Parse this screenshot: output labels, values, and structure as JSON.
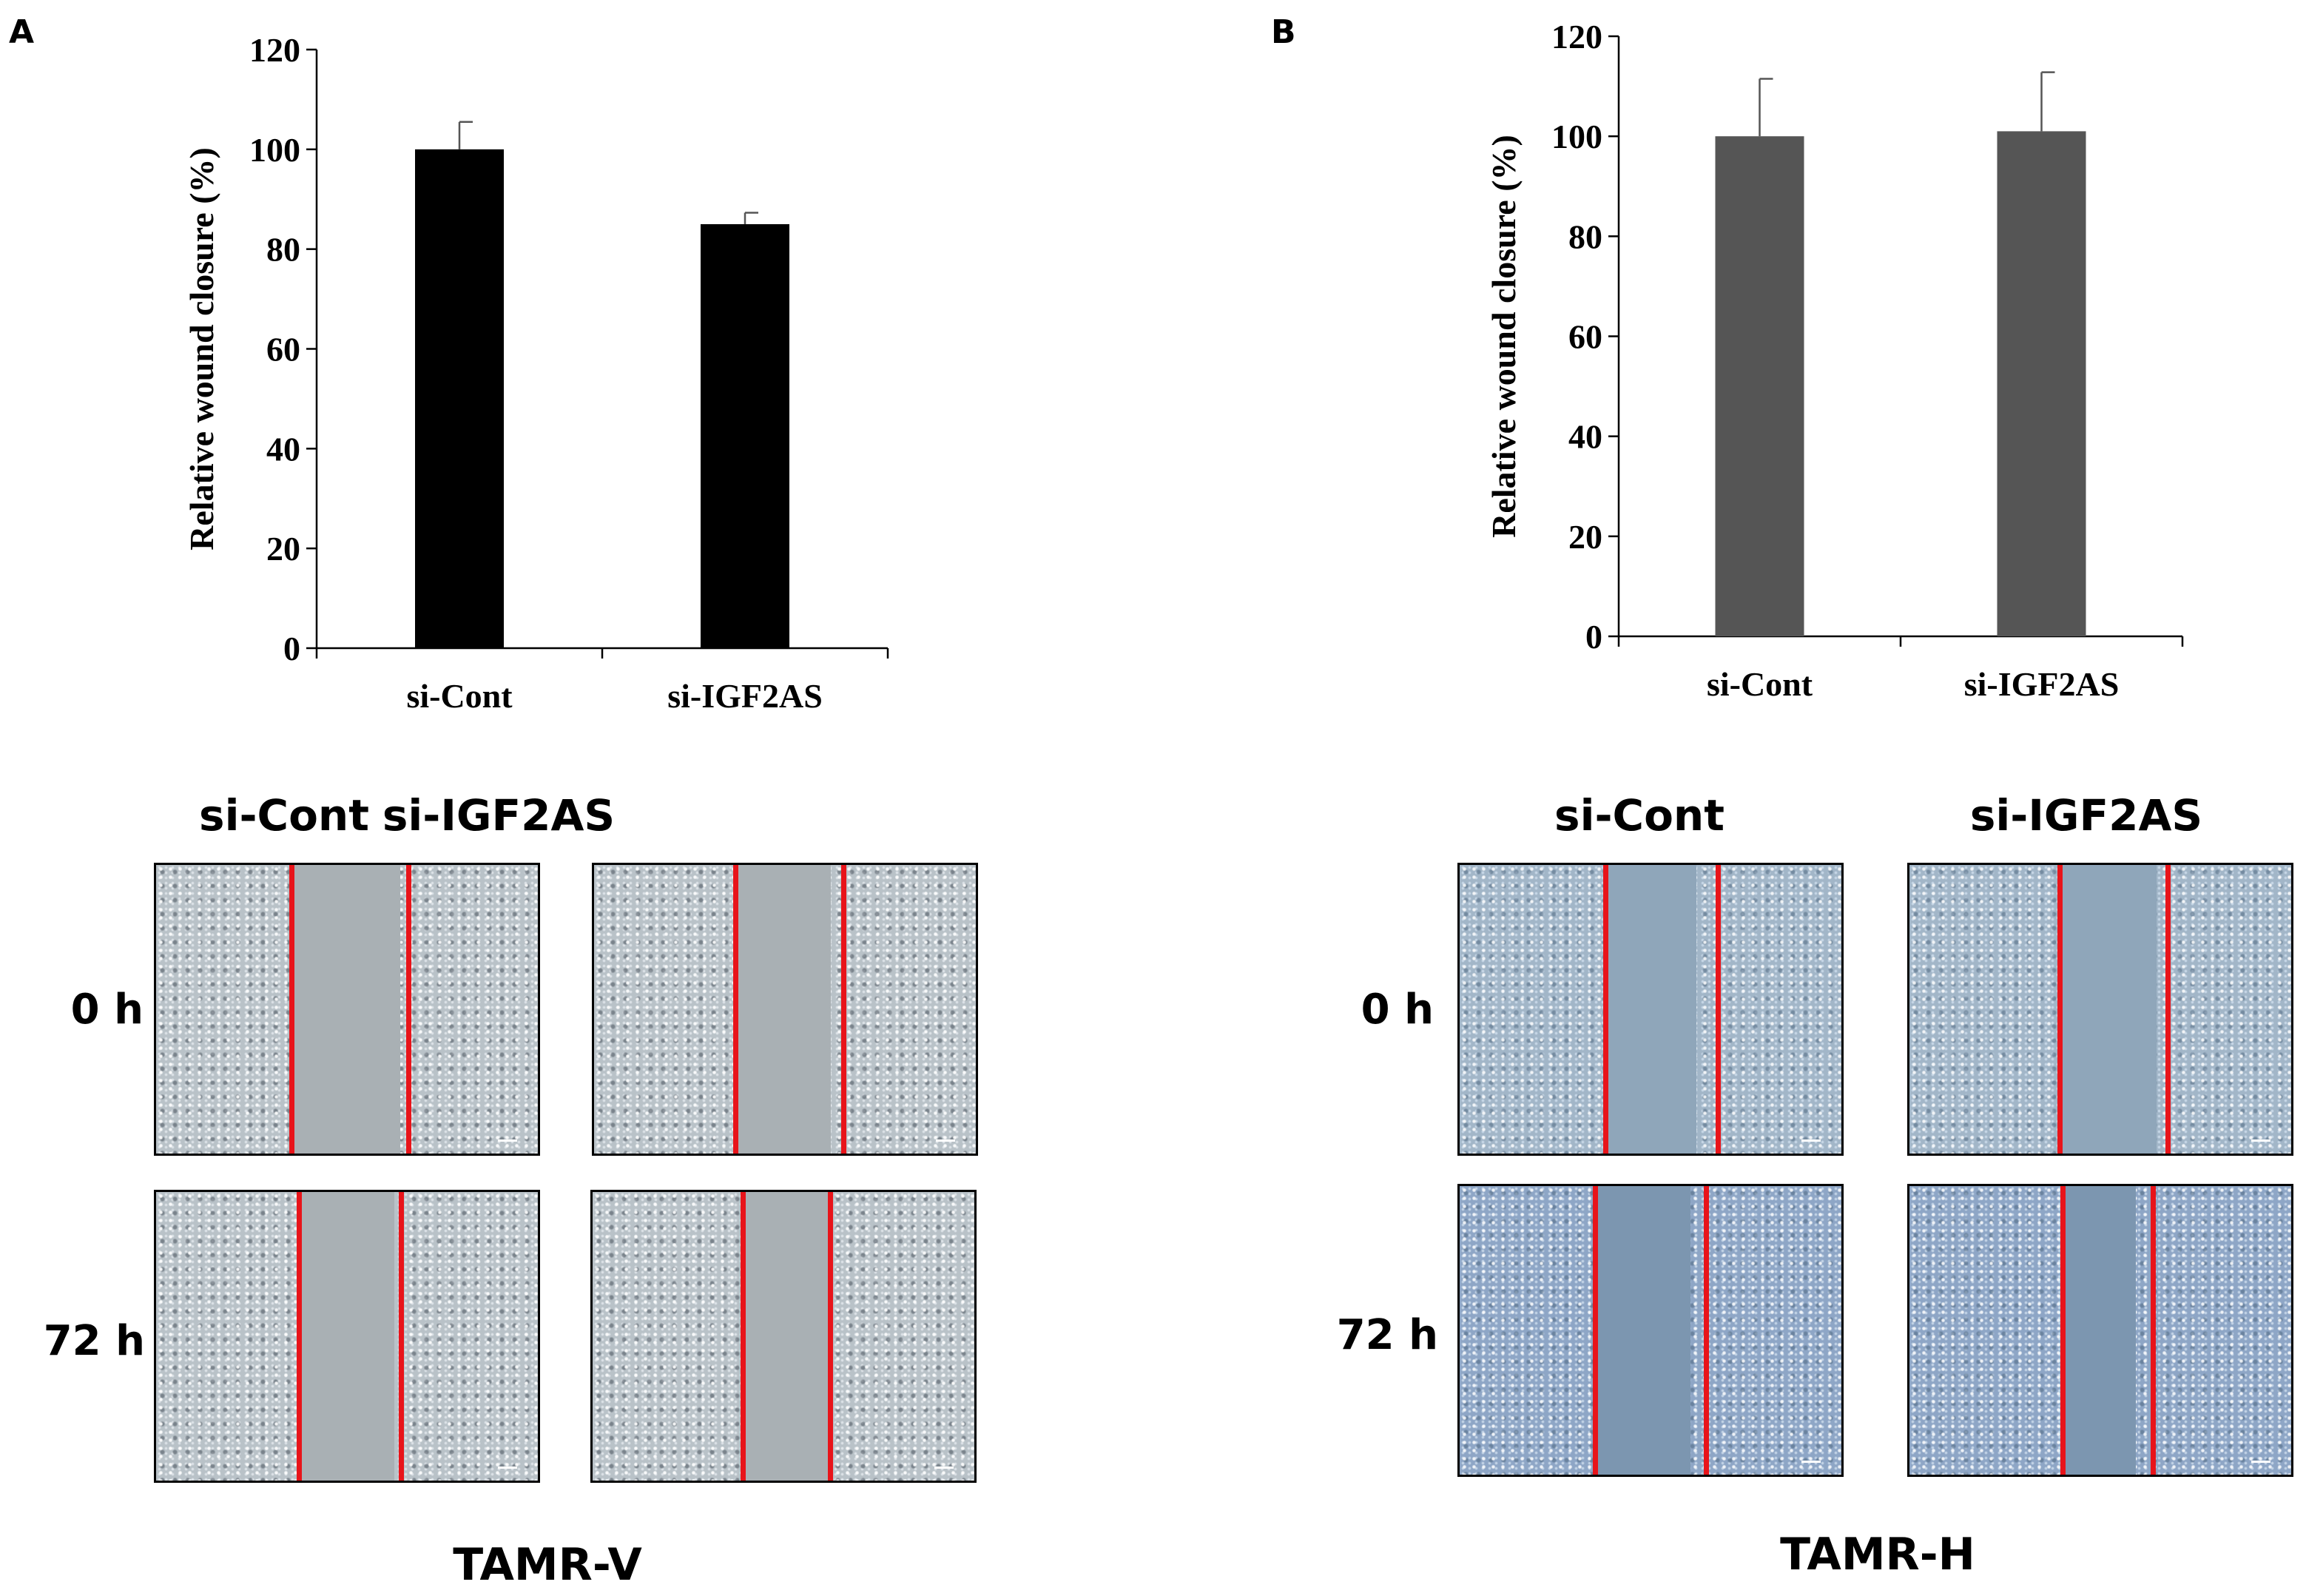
{
  "panels": [
    {
      "letter": "A",
      "cell_line": "TAMR-V"
    },
    {
      "letter": "B",
      "cell_line": "TAMR-H"
    }
  ],
  "images": {
    "conditions": [
      "si-Cont",
      "si-IGF2AS"
    ],
    "timepoints": [
      "0 h",
      "72 h"
    ]
  },
  "chart_data": [
    {
      "type": "bar",
      "panel": "A",
      "categories": [
        "si-Cont",
        "si-IGF2AS"
      ],
      "values": [
        100,
        85
      ],
      "errors": [
        5.5,
        2.3
      ],
      "title": "",
      "xlabel": "",
      "ylabel": "Relative wound closure (%)",
      "ylim": [
        0,
        120
      ],
      "yticks": [
        0,
        20,
        40,
        60,
        80,
        100,
        120
      ],
      "bar_color": "#000000"
    },
    {
      "type": "bar",
      "panel": "B",
      "categories": [
        "si-Cont",
        "si-IGF2AS"
      ],
      "values": [
        100,
        101
      ],
      "errors": [
        11.5,
        11.8
      ],
      "title": "",
      "xlabel": "",
      "ylabel": "Relative wound closure (%)",
      "ylim": [
        0,
        120
      ],
      "yticks": [
        0,
        20,
        40,
        60,
        80,
        100,
        120
      ],
      "bar_color": "#555555"
    }
  ]
}
